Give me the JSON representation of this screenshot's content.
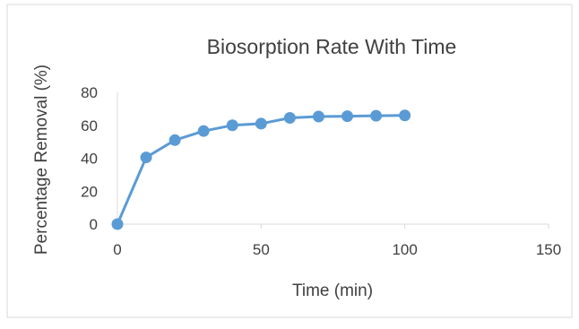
{
  "chart_data": {
    "type": "line",
    "title": "Biosorption Rate With Time",
    "xlabel": "Time (min)",
    "ylabel": "Percentage Removal (%)",
    "xlim": [
      0,
      150
    ],
    "ylim": [
      0,
      80
    ],
    "x_ticks": [
      0,
      50,
      100,
      150
    ],
    "y_ticks": [
      0,
      20,
      40,
      60,
      80
    ],
    "grid": false,
    "legend": "none",
    "series": [
      {
        "x": [
          0,
          10,
          20,
          30,
          40,
          50,
          60,
          70,
          80,
          90,
          100
        ],
        "y": [
          0,
          40.5,
          51,
          56.5,
          60,
          61,
          64.5,
          65.3,
          65.5,
          65.8,
          66
        ],
        "color": "#5B9BD5"
      }
    ]
  }
}
